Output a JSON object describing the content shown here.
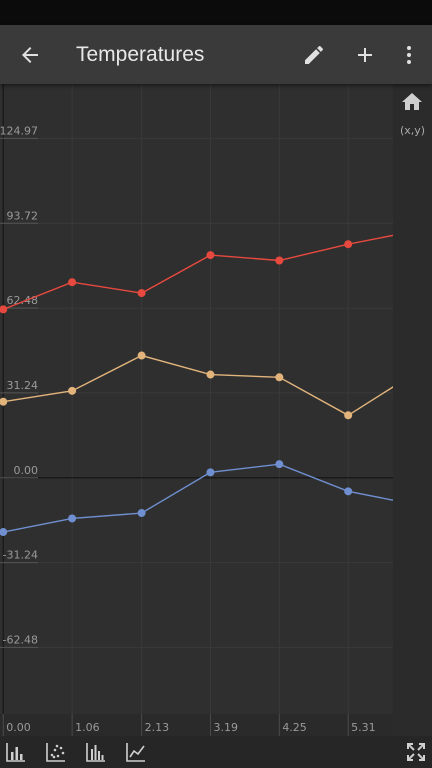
{
  "app_bar": {
    "title": "Temperatures",
    "back_icon": "arrow-left-icon",
    "edit_icon": "pencil-icon",
    "add_icon": "plus-icon",
    "menu_icon": "more-vert-icon"
  },
  "side_panel": {
    "home_icon": "home-icon",
    "xy_label": "(x,y)"
  },
  "bottom_toolbar": {
    "icons": [
      "bar-chart-icon",
      "scatter-chart-icon",
      "histogram-icon",
      "line-chart-icon",
      "fullscreen-icon"
    ]
  },
  "colors": {
    "background": "#303030",
    "series_red": "#e8493f",
    "series_tan": "#e2b47c",
    "series_blue": "#6f8fd0"
  },
  "chart_data": {
    "type": "line",
    "title": "",
    "xlabel": "",
    "ylabel": "",
    "xlim": [
      -0.05,
      6.0
    ],
    "ylim": [
      -87.0,
      145.0
    ],
    "x_ticks": [
      "0.00",
      "1.06",
      "2.13",
      "3.19",
      "4.25",
      "5.31"
    ],
    "y_ticks": [
      "124.97",
      "93.72",
      "62.48",
      "31.24",
      "0.00",
      "-31.24",
      "-62.48"
    ],
    "x": [
      0.0,
      1.06,
      2.13,
      3.19,
      4.25,
      5.31,
      6.37
    ],
    "grid": true,
    "series": [
      {
        "color": "#e8493f",
        "values": [
          62.0,
          72.0,
          68.0,
          82.0,
          80.0,
          86.0,
          91.0
        ]
      },
      {
        "color": "#e2b47c",
        "values": [
          28.0,
          32.0,
          45.0,
          38.0,
          37.0,
          23.0,
          39.0
        ]
      },
      {
        "color": "#6f8fd0",
        "values": [
          -20.0,
          -15.0,
          -13.0,
          2.0,
          5.0,
          -5.0,
          -10.0
        ]
      }
    ]
  }
}
